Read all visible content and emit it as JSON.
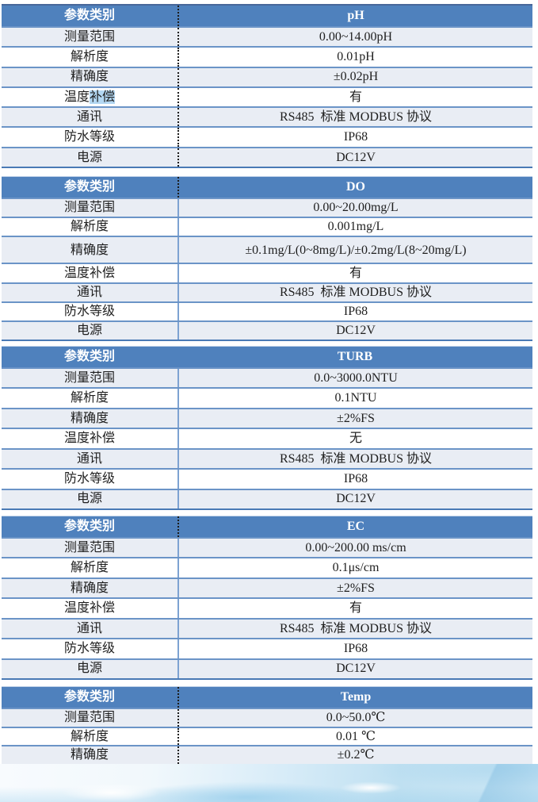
{
  "colors": {
    "header_bg": "#4f81bd",
    "header_text": "#ffffff",
    "band_bg": "#e9edf4",
    "row_border": "#6b94c7",
    "divider_dotted": "#1c1c1c",
    "divider_solid": "#7da2d2",
    "highlight_bg": "#b3d7f2",
    "text": "#1f1f1f"
  },
  "tables": [
    {
      "id": "ph",
      "header": {
        "param_label": "参数类别",
        "name": "pH"
      },
      "rows": [
        {
          "label": "测量范围",
          "value": "0.00~14.00pH"
        },
        {
          "label": "解析度",
          "value": "0.01pH"
        },
        {
          "label": "精确度",
          "value": "±0.02pH"
        },
        {
          "label_prefix": "温度",
          "label_mark": "补偿",
          "value": "有"
        },
        {
          "label": "通讯",
          "value": "RS485  标准 MODBUS 协议"
        },
        {
          "label": "防水等级",
          "value": "IP68"
        },
        {
          "label": "电源",
          "value": "DC12V"
        }
      ]
    },
    {
      "id": "do",
      "header": {
        "param_label": "参数类别",
        "name": "DO"
      },
      "rows": [
        {
          "label": "测量范围",
          "value": "0.00~20.00mg/L"
        },
        {
          "label": "解析度",
          "value": "0.001mg/L"
        },
        {
          "label": "精确度",
          "value": "±0.1mg/L(0~8mg/L)/±0.2mg/L(8~20mg/L)"
        },
        {
          "label": "温度补偿",
          "value": "有"
        },
        {
          "label": "通讯",
          "value": "RS485  标准 MODBUS 协议"
        },
        {
          "label": "防水等级",
          "value": "IP68"
        },
        {
          "label": "电源",
          "value": "DC12V"
        }
      ]
    },
    {
      "id": "turb",
      "header": {
        "param_label": "参数类别",
        "name": "TURB"
      },
      "rows": [
        {
          "label": "测量范围",
          "value": "0.0~3000.0NTU"
        },
        {
          "label": "解析度",
          "value": "0.1NTU"
        },
        {
          "label": "精确度",
          "value": "±2%FS"
        },
        {
          "label": "温度补偿",
          "value": "无"
        },
        {
          "label": "通讯",
          "value": "RS485  标准 MODBUS 协议"
        },
        {
          "label": "防水等级",
          "value": "IP68"
        },
        {
          "label": "电源",
          "value": "DC12V"
        }
      ]
    },
    {
      "id": "ec",
      "header": {
        "param_label": "参数类别",
        "name": "EC"
      },
      "rows": [
        {
          "label": "测量范围",
          "value": "0.00~200.00 ms/cm"
        },
        {
          "label": "解析度",
          "value": "0.1μs/cm"
        },
        {
          "label": "精确度",
          "value": "±2%FS"
        },
        {
          "label": "温度补偿",
          "value": "有"
        },
        {
          "label": "通讯",
          "value": "RS485  标准 MODBUS 协议"
        },
        {
          "label": "防水等级",
          "value": "IP68"
        },
        {
          "label": "电源",
          "value": "DC12V"
        }
      ]
    },
    {
      "id": "temp",
      "header": {
        "param_label": "参数类别",
        "name": "Temp"
      },
      "rows": [
        {
          "label": "测量范围",
          "value": "0.0~50.0℃"
        },
        {
          "label": "解析度",
          "value": "0.01 ℃"
        },
        {
          "label": "精确度",
          "value": "±0.2℃"
        }
      ]
    }
  ]
}
